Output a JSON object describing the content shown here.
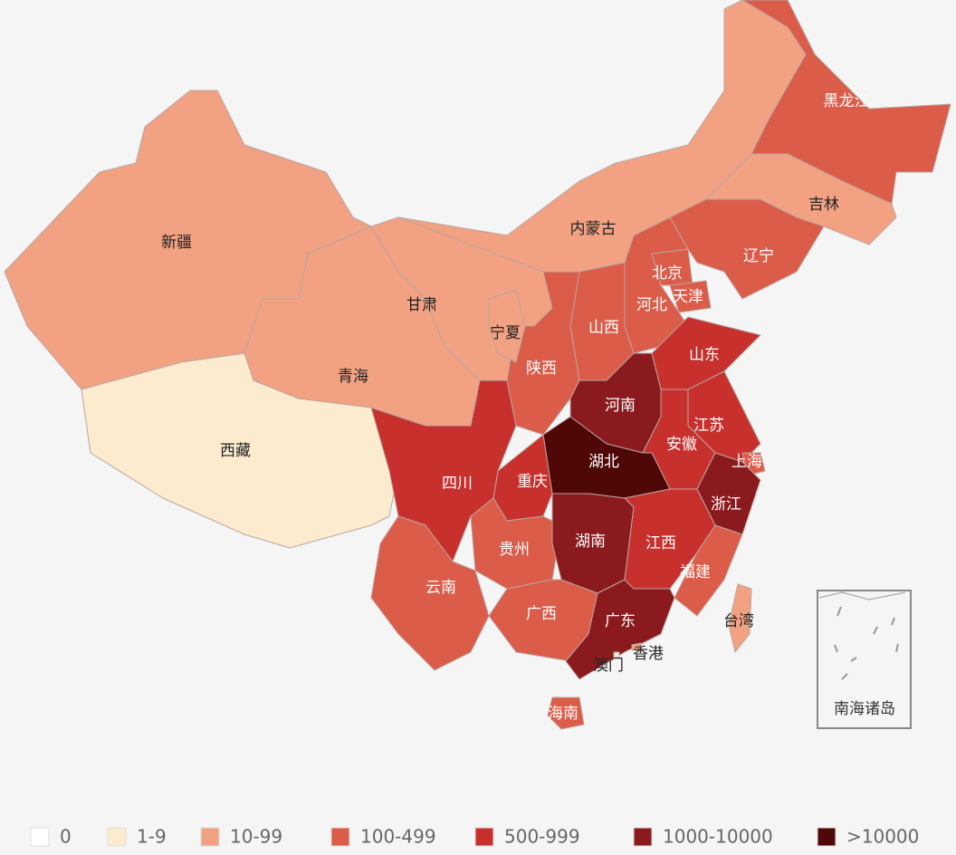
{
  "provinces": [
    {
      "name": "新疆",
      "color": "#f2a283"
    },
    {
      "name": "西藏",
      "color": "#fdebcf"
    },
    {
      "name": "青海",
      "color": "#f2a283"
    },
    {
      "name": "甘肃",
      "color": "#f2a283"
    },
    {
      "name": "内蒙古",
      "color": "#f2a283"
    },
    {
      "name": "黑龙江",
      "color": "#dc5c4a"
    },
    {
      "name": "吉林",
      "color": "#f2a283"
    },
    {
      "name": "辽宁",
      "color": "#dc5c4a"
    },
    {
      "name": "北京",
      "color": "#dc5c4a"
    },
    {
      "name": "天津",
      "color": "#dc5c4a"
    },
    {
      "name": "河北",
      "color": "#dc5c4a"
    },
    {
      "name": "山西",
      "color": "#dc5c4a"
    },
    {
      "name": "陕西",
      "color": "#dc5c4a"
    },
    {
      "name": "宁夏",
      "color": "#f2a283"
    },
    {
      "name": "山东",
      "color": "#c8302e"
    },
    {
      "name": "河南",
      "color": "#8b1a1e"
    },
    {
      "name": "江苏",
      "color": "#c8302e"
    },
    {
      "name": "安徽",
      "color": "#c8302e"
    },
    {
      "name": "上海",
      "color": "#dc5c4a"
    },
    {
      "name": "浙江",
      "color": "#8b1a1e"
    },
    {
      "name": "湖北",
      "color": "#4f0707"
    },
    {
      "name": "重庆",
      "color": "#c8302e"
    },
    {
      "name": "四川",
      "color": "#c8302e"
    },
    {
      "name": "贵州",
      "color": "#dc5c4a"
    },
    {
      "name": "云南",
      "color": "#dc5c4a"
    },
    {
      "name": "湖南",
      "color": "#8b1a1e"
    },
    {
      "name": "江西",
      "color": "#c8302e"
    },
    {
      "name": "福建",
      "color": "#dc5c4a"
    },
    {
      "name": "广西",
      "color": "#dc5c4a"
    },
    {
      "name": "广东",
      "color": "#8b1a1e"
    },
    {
      "name": "海南",
      "color": "#dc5c4a"
    },
    {
      "name": "台湾",
      "color": "#f2a283"
    },
    {
      "name": "香港",
      "color": "#f2a283"
    },
    {
      "name": "澳门",
      "color": "#fdebcf"
    }
  ],
  "inset_label": "南海诸岛",
  "legend": [
    {
      "label": "0",
      "color": "#ffffff"
    },
    {
      "label": "1-9",
      "color": "#fdebcf"
    },
    {
      "label": "10-99",
      "color": "#f2a283"
    },
    {
      "label": "100-499",
      "color": "#dc5c4a"
    },
    {
      "label": "500-999",
      "color": "#c8302e"
    },
    {
      "label": "1000-10000",
      "color": "#8b1a1e"
    },
    {
      "label": ">10000",
      "color": "#4f0707"
    }
  ]
}
